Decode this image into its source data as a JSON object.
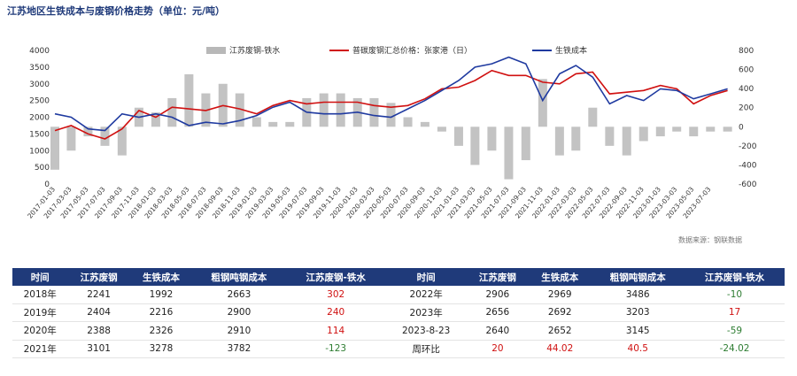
{
  "chart_data": {
    "type": "line",
    "title": "江苏地区生铁成本与废钢价格走势（单位：元/吨）",
    "source": "数据来源：钢联数据",
    "legend": [
      "江苏废钢-铁水",
      "普碳废钢汇总价格：张家港（日）",
      "生铁成本"
    ],
    "legend_position": "top",
    "left_axis": {
      "ticks": [
        0,
        500,
        1000,
        1500,
        2000,
        2500,
        3000,
        3500,
        4000
      ],
      "range": [
        0,
        4000
      ]
    },
    "right_axis": {
      "ticks": [
        -600,
        -400,
        -200,
        0,
        200,
        400,
        600,
        800
      ],
      "range": [
        -600,
        800
      ]
    },
    "x_range": [
      "2017-01-01",
      "2023-09-15"
    ],
    "x_ticks": [
      "2017-01-03",
      "2017-03-03",
      "2017-05-03",
      "2017-07-03",
      "2017-09-03",
      "2017-11-03",
      "2018-01-03",
      "2018-03-03",
      "2018-05-03",
      "2018-07-03",
      "2018-09-03",
      "2018-11-03",
      "2019-01-03",
      "2019-03-03",
      "2019-05-03",
      "2019-07-03",
      "2019-09-03",
      "2019-11-03",
      "2020-01-03",
      "2020-03-03",
      "2020-05-03",
      "2020-07-03",
      "2020-09-03",
      "2020-11-03",
      "2021-01-03",
      "2021-03-03",
      "2021-05-03",
      "2021-07-03",
      "2021-09-03",
      "2021-11-03",
      "2022-01-03",
      "2022-03-03",
      "2022-05-03",
      "2022-07-03",
      "2022-09-03",
      "2022-11-03",
      "2023-01-03",
      "2023-03-03",
      "2023-05-03",
      "2023-07-03"
    ],
    "series": [
      {
        "name": "普碳废钢汇总价格：张家港（日）",
        "axis": "left",
        "color": "#d01010",
        "x": [
          "2017-01-01",
          "2017-03-01",
          "2017-05-01",
          "2017-07-01",
          "2017-09-01",
          "2017-11-01",
          "2018-01-01",
          "2018-03-01",
          "2018-05-01",
          "2018-07-01",
          "2018-09-01",
          "2018-11-01",
          "2019-01-01",
          "2019-03-01",
          "2019-05-01",
          "2019-07-01",
          "2019-09-01",
          "2019-11-01",
          "2020-01-01",
          "2020-03-01",
          "2020-05-01",
          "2020-07-01",
          "2020-09-01",
          "2020-11-01",
          "2021-01-01",
          "2021-03-01",
          "2021-05-01",
          "2021-07-01",
          "2021-09-01",
          "2021-11-01",
          "2022-01-01",
          "2022-03-01",
          "2022-05-01",
          "2022-07-01",
          "2022-09-01",
          "2022-11-01",
          "2023-01-01",
          "2023-03-01",
          "2023-05-01",
          "2023-07-01",
          "2023-09-01"
        ],
        "y": [
          1600,
          1750,
          1500,
          1350,
          1650,
          2200,
          2000,
          2300,
          2250,
          2200,
          2350,
          2250,
          2100,
          2350,
          2500,
          2400,
          2450,
          2450,
          2450,
          2350,
          2300,
          2350,
          2550,
          2850,
          2900,
          3100,
          3400,
          3250,
          3250,
          3050,
          3000,
          3300,
          3350,
          2700,
          2750,
          2800,
          2950,
          2850,
          2400,
          2650,
          2800
        ]
      },
      {
        "name": "生铁成本",
        "axis": "left",
        "color": "#1f3aa0",
        "x": [
          "2017-01-01",
          "2017-03-01",
          "2017-05-01",
          "2017-07-01",
          "2017-09-01",
          "2017-11-01",
          "2018-01-01",
          "2018-03-01",
          "2018-05-01",
          "2018-07-01",
          "2018-09-01",
          "2018-11-01",
          "2019-01-01",
          "2019-03-01",
          "2019-05-01",
          "2019-07-01",
          "2019-09-01",
          "2019-11-01",
          "2020-01-01",
          "2020-03-01",
          "2020-05-01",
          "2020-07-01",
          "2020-09-01",
          "2020-11-01",
          "2021-01-01",
          "2021-03-01",
          "2021-05-01",
          "2021-07-01",
          "2021-09-01",
          "2021-11-01",
          "2022-01-01",
          "2022-03-01",
          "2022-05-01",
          "2022-07-01",
          "2022-09-01",
          "2022-11-01",
          "2023-01-01",
          "2023-03-01",
          "2023-05-01",
          "2023-07-01",
          "2023-09-01"
        ],
        "y": [
          2100,
          2000,
          1650,
          1600,
          2100,
          2000,
          2100,
          2000,
          1750,
          1850,
          1800,
          1900,
          2050,
          2300,
          2450,
          2150,
          2100,
          2100,
          2150,
          2050,
          2000,
          2250,
          2500,
          2800,
          3100,
          3500,
          3600,
          3800,
          3600,
          2500,
          3300,
          3550,
          3200,
          2400,
          2650,
          2500,
          2850,
          2800,
          2550,
          2700,
          2850
        ]
      },
      {
        "name": "江苏废钢-铁水",
        "axis": "right",
        "type": "bar",
        "color": "#b8b8b8",
        "x": [
          "2017-01-01",
          "2017-03-01",
          "2017-05-01",
          "2017-07-01",
          "2017-09-01",
          "2017-11-01",
          "2018-01-01",
          "2018-03-01",
          "2018-05-01",
          "2018-07-01",
          "2018-09-01",
          "2018-11-01",
          "2019-01-01",
          "2019-03-01",
          "2019-05-01",
          "2019-07-01",
          "2019-09-01",
          "2019-11-01",
          "2020-01-01",
          "2020-03-01",
          "2020-05-01",
          "2020-07-01",
          "2020-09-01",
          "2020-11-01",
          "2021-01-01",
          "2021-03-01",
          "2021-05-01",
          "2021-07-01",
          "2021-09-01",
          "2021-11-01",
          "2022-01-01",
          "2022-03-01",
          "2022-05-01",
          "2022-07-01",
          "2022-09-01",
          "2022-11-01",
          "2023-01-01",
          "2023-03-01",
          "2023-05-01",
          "2023-07-01",
          "2023-09-01"
        ],
        "y": [
          -450,
          -250,
          -100,
          -200,
          -300,
          200,
          150,
          300,
          550,
          350,
          450,
          350,
          100,
          50,
          50,
          300,
          350,
          350,
          300,
          300,
          250,
          100,
          50,
          -50,
          -200,
          -400,
          -250,
          -550,
          -350,
          500,
          -300,
          -250,
          200,
          -200,
          -300,
          -150,
          -100,
          -50,
          -100,
          -50,
          -50
        ]
      }
    ]
  },
  "table": {
    "headers": [
      "时间",
      "江苏废钢",
      "生铁成本",
      "粗钢吨钢成本",
      "江苏废钢-铁水",
      "时间",
      "江苏废钢",
      "生铁成本",
      "粗钢吨钢成本",
      "江苏废钢-铁水"
    ],
    "rows": [
      [
        "2018年",
        "2241",
        "1992",
        "2663",
        "302",
        "2022年",
        "2906",
        "2969",
        "3486",
        "-10"
      ],
      [
        "2019年",
        "2404",
        "2216",
        "2900",
        "240",
        "2023年",
        "2656",
        "2692",
        "3203",
        "17"
      ],
      [
        "2020年",
        "2388",
        "2326",
        "2910",
        "114",
        "2023-8-23",
        "2640",
        "2652",
        "3145",
        "-59"
      ],
      [
        "2021年",
        "3101",
        "3278",
        "3782",
        "-123",
        "周环比",
        "20",
        "44.02",
        "40.5",
        "-24.02"
      ]
    ]
  },
  "colors": {
    "header_bg": "#1f3a7a",
    "positive": "#d01010",
    "negative": "#2e7d32"
  }
}
